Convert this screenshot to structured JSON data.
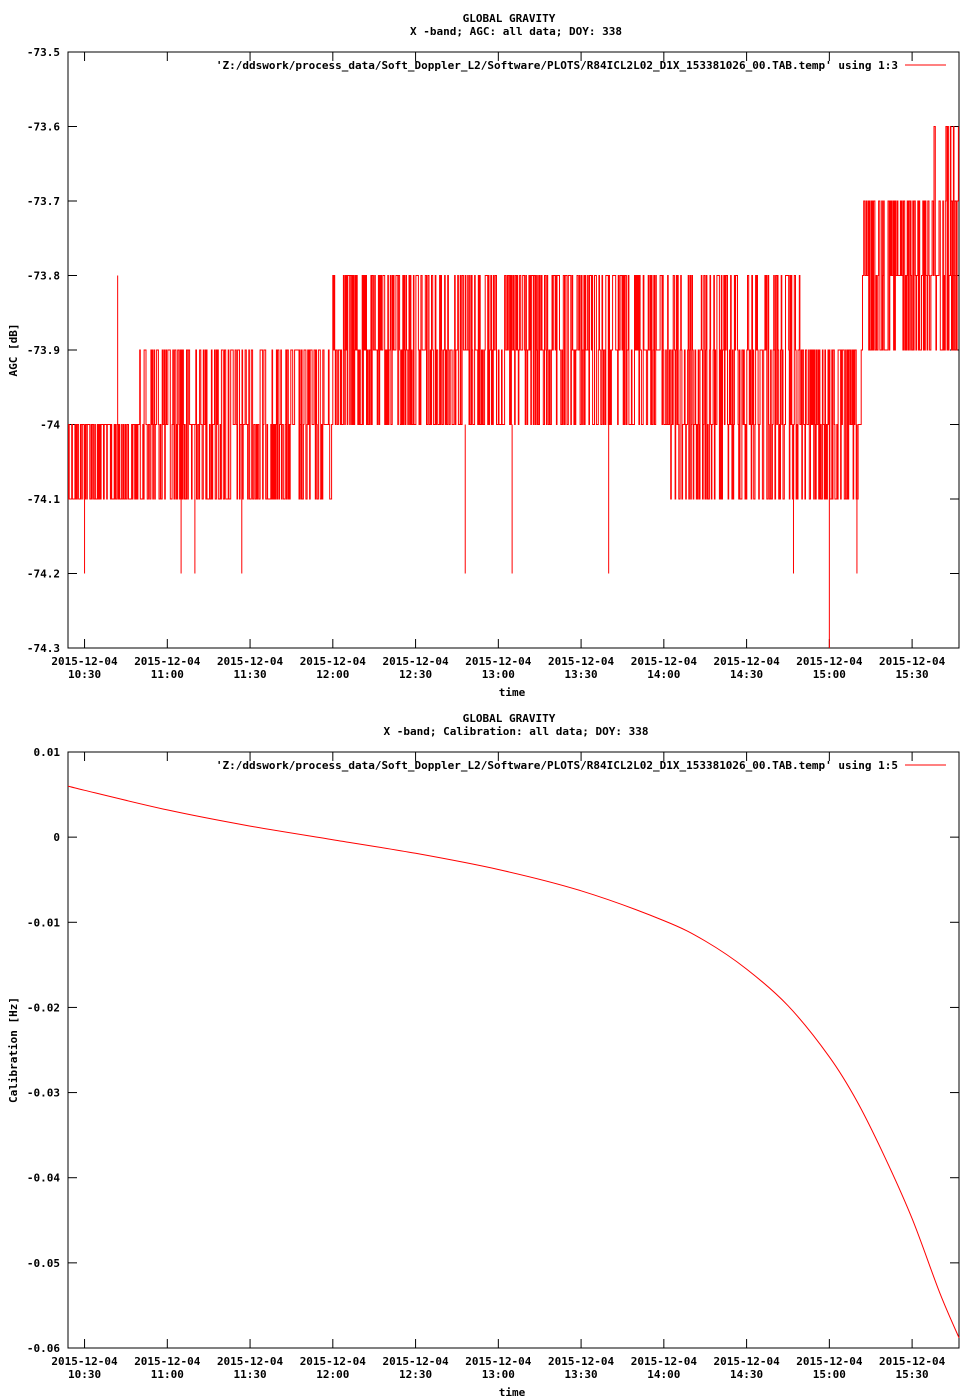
{
  "colors": {
    "series": "#ff0000",
    "axis": "#000000",
    "background": "#ffffff"
  },
  "chart_data": [
    {
      "type": "line",
      "title_line1": "GLOBAL GRAVITY",
      "title_line2": "X -band; AGC: all data; DOY: 338",
      "xlabel": "time",
      "ylabel": "AGC [dB]",
      "legend": "'Z:/ddswork/process_data/Soft_Doppler_L2/Software/PLOTS/R84ICL2L02_D1X_153381026_00.TAB.temp' using 1:3",
      "legend_position": "top-right",
      "grid": false,
      "xlim": [
        "10:24",
        "15:47"
      ],
      "ylim": [
        -74.3,
        -73.5
      ],
      "yticks": [
        -73.5,
        -73.6,
        -73.7,
        -73.8,
        -73.9,
        -74,
        -74.1,
        -74.2,
        -74.3
      ],
      "ytick_labels": [
        "-73.5",
        "-73.6",
        "-73.7",
        "-73.8",
        "-73.9",
        "-74",
        "-74.1",
        "-74.2",
        "-74.3"
      ],
      "xticks": [
        "10:30",
        "11:00",
        "11:30",
        "12:00",
        "12:30",
        "13:00",
        "13:30",
        "14:00",
        "14:30",
        "15:00",
        "15:30"
      ],
      "xtick_date": "2015-12-04",
      "series": [
        {
          "description_segments": [
            {
              "from": "10:24",
              "to": "10:50",
              "levels": [
                -74.0,
                -74.1
              ],
              "mean": -74.05
            },
            {
              "from": "10:50",
              "to": "11:30",
              "levels": [
                -73.9,
                -74.0,
                -74.1
              ],
              "mean": -74.03
            },
            {
              "from": "11:30",
              "to": "12:00",
              "levels": [
                -73.9,
                -74.0,
                -74.1
              ],
              "mean": -73.97
            },
            {
              "from": "12:00",
              "to": "13:00",
              "levels": [
                -73.8,
                -73.9,
                -74.0
              ],
              "mean": -73.94
            },
            {
              "from": "13:00",
              "to": "14:00",
              "levels": [
                -73.8,
                -73.9,
                -74.0
              ],
              "mean": -73.94
            },
            {
              "from": "14:00",
              "to": "14:50",
              "levels": [
                -73.8,
                -73.9,
                -74.0,
                -74.1
              ],
              "mean": -73.95
            },
            {
              "from": "14:50",
              "to": "15:12",
              "levels": [
                -73.9,
                -74.0,
                -74.1
              ],
              "mean": -74.0
            },
            {
              "from": "15:12",
              "to": "15:35",
              "levels": [
                -73.7,
                -73.8,
                -73.9
              ],
              "mean": -73.82
            },
            {
              "from": "15:35",
              "to": "15:47",
              "levels": [
                -73.6,
                -73.7,
                -73.8,
                -73.9
              ],
              "mean": -73.78
            }
          ],
          "spikes": [
            {
              "t": "10:42",
              "y": -73.8
            },
            {
              "t": "10:30",
              "y": -74.2
            },
            {
              "t": "11:05",
              "y": -74.2
            },
            {
              "t": "11:10",
              "y": -74.2
            },
            {
              "t": "11:27",
              "y": -74.2
            },
            {
              "t": "12:48",
              "y": -74.2
            },
            {
              "t": "13:05",
              "y": -74.2
            },
            {
              "t": "13:40",
              "y": -74.2
            },
            {
              "t": "14:47",
              "y": -74.2
            },
            {
              "t": "15:00",
              "y": -74.3
            },
            {
              "t": "15:10",
              "y": -74.2
            }
          ]
        }
      ]
    },
    {
      "type": "line",
      "title_line1": "GLOBAL GRAVITY",
      "title_line2": "X -band; Calibration: all data; DOY: 338",
      "xlabel": "time",
      "ylabel": "Calibration [Hz]",
      "legend": "'Z:/ddswork/process_data/Soft_Doppler_L2/Software/PLOTS/R84ICL2L02_D1X_153381026_00.TAB.temp' using 1:5",
      "legend_position": "top-right",
      "grid": false,
      "xlim": [
        "10:24",
        "15:47"
      ],
      "ylim": [
        -0.06,
        0.01
      ],
      "yticks": [
        0.01,
        0,
        -0.01,
        -0.02,
        -0.03,
        -0.04,
        -0.05,
        -0.06
      ],
      "ytick_labels": [
        "0.01",
        "0",
        "-0.01",
        "-0.02",
        "-0.03",
        "-0.04",
        "-0.05",
        "-0.06"
      ],
      "xticks": [
        "10:30",
        "11:00",
        "11:30",
        "12:00",
        "12:30",
        "13:00",
        "13:30",
        "14:00",
        "14:30",
        "15:00",
        "15:30"
      ],
      "xtick_date": "2015-12-04",
      "series": [
        {
          "x": [
            "10:24",
            "10:30",
            "11:00",
            "11:30",
            "12:00",
            "12:30",
            "13:00",
            "13:30",
            "14:00",
            "14:15",
            "14:30",
            "14:45",
            "15:00",
            "15:10",
            "15:20",
            "15:30",
            "15:40",
            "15:47"
          ],
          "y": [
            0.006,
            0.0055,
            0.0032,
            0.0013,
            -0.0003,
            -0.0019,
            -0.0038,
            -0.0063,
            -0.0098,
            -0.0122,
            -0.0155,
            -0.0198,
            -0.0258,
            -0.031,
            -0.0375,
            -0.0448,
            -0.0535,
            -0.0588
          ]
        }
      ]
    }
  ]
}
